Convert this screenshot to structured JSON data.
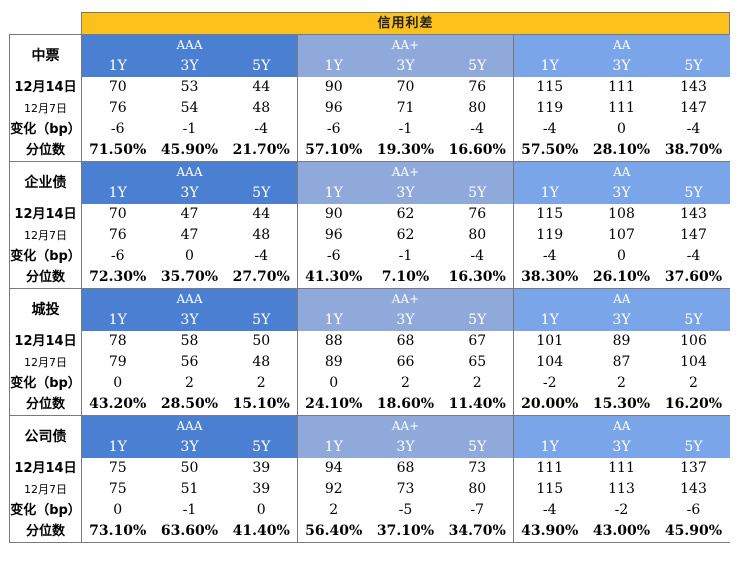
{
  "title": "信用利差",
  "ratings": [
    "AAA",
    "AA+",
    "AA"
  ],
  "tenors": [
    "1Y",
    "3Y",
    "5Y"
  ],
  "row_labels": {
    "current": "12月14日",
    "prior": "12月7日",
    "change": "变化（bp）",
    "percentile": "分位数"
  },
  "colors": {
    "title_bg": "#fcc21b",
    "aaa_bg": "#4b7fd2",
    "aa_plus_bg": "#8ea9da",
    "aa_bg": "#7aa5e8"
  },
  "sections": [
    {
      "name": "中票",
      "current": [
        "70",
        "53",
        "44",
        "90",
        "70",
        "76",
        "115",
        "111",
        "143"
      ],
      "prior": [
        "76",
        "54",
        "48",
        "96",
        "71",
        "80",
        "119",
        "111",
        "147"
      ],
      "change": [
        "-6",
        "-1",
        "-4",
        "-6",
        "-1",
        "-4",
        "-4",
        "0",
        "-4"
      ],
      "percentile": [
        "71.50%",
        "45.90%",
        "21.70%",
        "57.10%",
        "19.30%",
        "16.60%",
        "57.50%",
        "28.10%",
        "38.70%"
      ]
    },
    {
      "name": "企业债",
      "current": [
        "70",
        "47",
        "44",
        "90",
        "62",
        "76",
        "115",
        "108",
        "143"
      ],
      "prior": [
        "76",
        "47",
        "48",
        "96",
        "62",
        "80",
        "119",
        "107",
        "147"
      ],
      "change": [
        "-6",
        "0",
        "-4",
        "-6",
        "-1",
        "-4",
        "-4",
        "0",
        "-4"
      ],
      "percentile": [
        "72.30%",
        "35.70%",
        "27.70%",
        "41.30%",
        "7.10%",
        "16.30%",
        "38.30%",
        "26.10%",
        "37.60%"
      ]
    },
    {
      "name": "城投",
      "current": [
        "78",
        "58",
        "50",
        "88",
        "68",
        "67",
        "101",
        "89",
        "106"
      ],
      "prior": [
        "79",
        "56",
        "48",
        "89",
        "66",
        "65",
        "104",
        "87",
        "104"
      ],
      "change": [
        "0",
        "2",
        "2",
        "0",
        "2",
        "2",
        "-2",
        "2",
        "2"
      ],
      "percentile": [
        "43.20%",
        "28.50%",
        "15.10%",
        "24.10%",
        "18.60%",
        "11.40%",
        "20.00%",
        "15.30%",
        "16.20%"
      ]
    },
    {
      "name": "公司债",
      "current": [
        "75",
        "50",
        "39",
        "94",
        "68",
        "73",
        "111",
        "111",
        "137"
      ],
      "prior": [
        "75",
        "51",
        "39",
        "92",
        "73",
        "80",
        "115",
        "113",
        "143"
      ],
      "change": [
        "0",
        "-1",
        "0",
        "2",
        "-5",
        "-7",
        "-4",
        "-2",
        "-6"
      ],
      "percentile": [
        "73.10%",
        "63.60%",
        "41.40%",
        "56.40%",
        "37.10%",
        "34.70%",
        "43.90%",
        "43.00%",
        "45.90%"
      ]
    }
  ]
}
